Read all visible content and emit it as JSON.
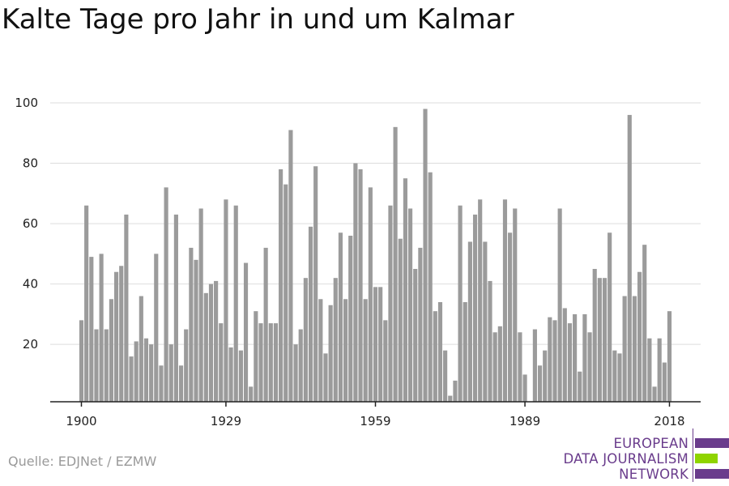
{
  "title": "Kalte Tage pro Jahr in und um Kalmar",
  "source": "Quelle: EDJNet / EZMW",
  "logo": {
    "lines": [
      "EUROPEAN",
      "DATA JOURNALISM",
      "NETWORK"
    ],
    "colors": {
      "purple": "#6a3c8c",
      "green": "#8fd400"
    }
  },
  "chart_data": {
    "type": "bar",
    "x": [
      1900,
      1901,
      1902,
      1903,
      1904,
      1905,
      1906,
      1907,
      1908,
      1909,
      1910,
      1911,
      1912,
      1913,
      1914,
      1915,
      1916,
      1917,
      1918,
      1919,
      1920,
      1921,
      1922,
      1923,
      1924,
      1925,
      1926,
      1927,
      1928,
      1929,
      1930,
      1931,
      1932,
      1933,
      1934,
      1935,
      1936,
      1937,
      1938,
      1939,
      1940,
      1941,
      1942,
      1943,
      1944,
      1945,
      1946,
      1947,
      1948,
      1949,
      1950,
      1951,
      1952,
      1953,
      1954,
      1955,
      1956,
      1957,
      1958,
      1959,
      1960,
      1961,
      1962,
      1963,
      1964,
      1965,
      1966,
      1967,
      1968,
      1969,
      1970,
      1971,
      1972,
      1973,
      1974,
      1975,
      1976,
      1977,
      1978,
      1979,
      1980,
      1981,
      1982,
      1983,
      1984,
      1985,
      1986,
      1987,
      1988,
      1989,
      1990,
      1991,
      1992,
      1993,
      1994,
      1995,
      1996,
      1997,
      1998,
      1999,
      2000,
      2001,
      2002,
      2003,
      2004,
      2005,
      2006,
      2007,
      2008,
      2009,
      2010,
      2011,
      2012,
      2013,
      2014,
      2015,
      2016,
      2017,
      2018
    ],
    "values": [
      28,
      66,
      49,
      25,
      50,
      25,
      35,
      44,
      46,
      63,
      16,
      21,
      36,
      22,
      20,
      50,
      13,
      72,
      20,
      63,
      13,
      25,
      52,
      48,
      65,
      37,
      40,
      41,
      27,
      68,
      19,
      66,
      18,
      47,
      6,
      31,
      27,
      52,
      27,
      27,
      78,
      73,
      91,
      20,
      25,
      42,
      59,
      79,
      35,
      17,
      33,
      42,
      57,
      35,
      56,
      80,
      78,
      35,
      72,
      39,
      39,
      28,
      66,
      92,
      55,
      75,
      65,
      45,
      52,
      98,
      77,
      31,
      34,
      18,
      3,
      8,
      66,
      34,
      54,
      63,
      68,
      54,
      41,
      24,
      26,
      68,
      57,
      65,
      24,
      10,
      0,
      25,
      13,
      18,
      29,
      28,
      65,
      32,
      27,
      30,
      11,
      30,
      24,
      45,
      42,
      42,
      57,
      18,
      17,
      36,
      96,
      36,
      44,
      53,
      22,
      6,
      22,
      14,
      31
    ],
    "xticks": [
      "1900",
      "1929",
      "1959",
      "1989",
      "2018"
    ],
    "yticks": [
      20,
      40,
      60,
      80,
      100
    ],
    "ylim": [
      0,
      100
    ],
    "bar_color": "#9b9b9b",
    "grid_color": "#dddddd",
    "axis_color": "#222222",
    "grid": true
  }
}
